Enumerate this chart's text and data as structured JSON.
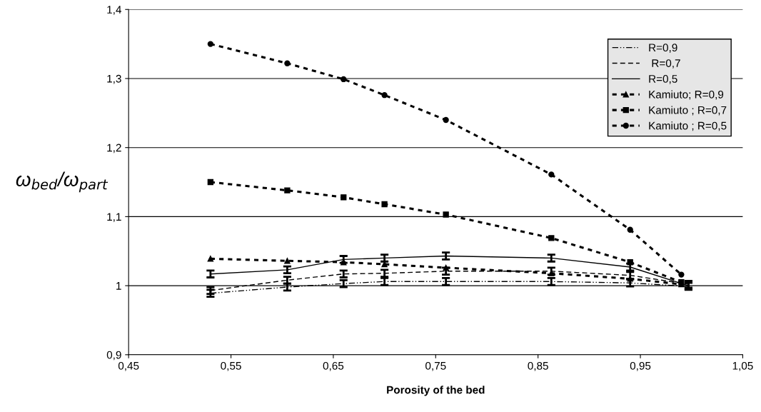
{
  "chart_data": {
    "type": "line",
    "xlabel": "Porosity of the bed",
    "ylabel": "ω$_{bed}$/ω$_{part}$",
    "xlim": [
      0.45,
      1.05
    ],
    "ylim": [
      0.9,
      1.4
    ],
    "xticks": [
      {
        "value": 0.45,
        "label": "0,45"
      },
      {
        "value": 0.55,
        "label": "0,55"
      },
      {
        "value": 0.65,
        "label": "0,65"
      },
      {
        "value": 0.75,
        "label": "0,75"
      },
      {
        "value": 0.85,
        "label": "0,85"
      },
      {
        "value": 0.95,
        "label": "0,95"
      },
      {
        "value": 1.05,
        "label": "1,05"
      }
    ],
    "yticks": [
      {
        "value": 0.9,
        "label": "0,9"
      },
      1,
      {
        "value": 1.1,
        "label": "1,1"
      },
      {
        "value": 1.2,
        "label": "1,2"
      },
      {
        "value": 1.3,
        "label": "1,3"
      },
      {
        "value": 1.4,
        "label": "1,4"
      }
    ],
    "grid": "y",
    "legend": "top right",
    "series": [
      {
        "name": "R=0,9",
        "color": "#000000",
        "line_style": "dashdot",
        "marker": "none",
        "x": [
          0.53,
          0.605,
          0.66,
          0.7,
          0.76,
          0.863,
          0.94,
          0.997
        ],
        "values": [
          0.989,
          0.998,
          1.003,
          1.006,
          1.006,
          1.006,
          1.004,
          0.999
        ],
        "errors": [
          0.005,
          0.005,
          0.005,
          0.005,
          0.005,
          0.005,
          0.005,
          0.005
        ]
      },
      {
        "name": " R=0,7",
        "color": "#000000",
        "line_style": "dashed",
        "marker": "none",
        "x": [
          0.53,
          0.605,
          0.66,
          0.7,
          0.76,
          0.863,
          0.94,
          0.997
        ],
        "values": [
          0.993,
          1.008,
          1.017,
          1.018,
          1.021,
          1.021,
          1.015,
          1.002
        ],
        "errors": [
          0.005,
          0.005,
          0.005,
          0.005,
          0.005,
          0.005,
          0.005,
          0.005
        ]
      },
      {
        "name": "R=0,5",
        "color": "#000000",
        "line_style": "solid",
        "marker": "none",
        "x": [
          0.53,
          0.605,
          0.66,
          0.7,
          0.76,
          0.863,
          0.94,
          0.997
        ],
        "values": [
          1.017,
          1.023,
          1.038,
          1.04,
          1.043,
          1.04,
          1.027,
          1.0
        ],
        "errors": [
          0.005,
          0.005,
          0.005,
          0.005,
          0.005,
          0.005,
          0.005,
          0.005
        ]
      },
      {
        "name": "Kamiuto; R=0,9",
        "color": "#000000",
        "line_style": "dotted",
        "marker": "triangle",
        "x": [
          0.53,
          0.605,
          0.66,
          0.7,
          0.76,
          0.863,
          0.94,
          0.99
        ],
        "values": [
          1.039,
          1.036,
          1.034,
          1.031,
          1.026,
          1.018,
          1.01,
          1.002
        ]
      },
      {
        "name": "Kamiuto ; R=0,7",
        "color": "#000000",
        "line_style": "dotted",
        "marker": "square",
        "x": [
          0.53,
          0.605,
          0.66,
          0.7,
          0.76,
          0.863,
          0.94,
          0.99
        ],
        "values": [
          1.15,
          1.138,
          1.128,
          1.118,
          1.103,
          1.069,
          1.034,
          1.005
        ]
      },
      {
        "name": "Kamiuto ; R=0,5",
        "color": "#000000",
        "line_style": "dotted",
        "marker": "circle",
        "x": [
          0.53,
          0.605,
          0.66,
          0.7,
          0.76,
          0.863,
          0.94,
          0.99
        ],
        "values": [
          1.35,
          1.322,
          1.299,
          1.276,
          1.24,
          1.161,
          1.081,
          1.016
        ]
      }
    ]
  }
}
